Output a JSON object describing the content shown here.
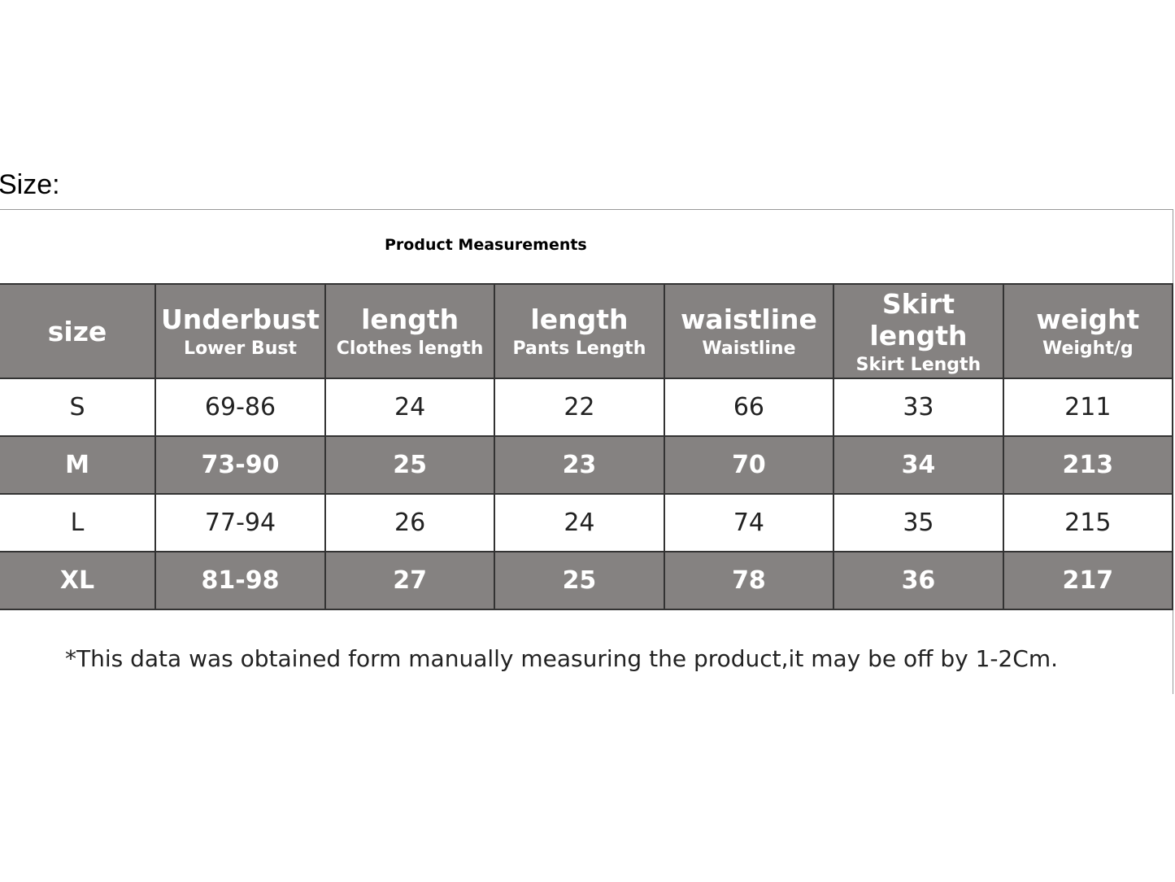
{
  "heading": "Size:",
  "table": {
    "title": "Product Measurements",
    "columns": [
      {
        "main": "size",
        "sub": null
      },
      {
        "main": "Underbust",
        "sub": "Lower Bust"
      },
      {
        "main": "length",
        "sub": "Clothes length"
      },
      {
        "main": "length",
        "sub": "Pants Length"
      },
      {
        "main": "waistline",
        "sub": "Waistline"
      },
      {
        "main": "Skirt length",
        "sub": "Skirt Length"
      },
      {
        "main": "weight",
        "sub": "Weight/g"
      }
    ],
    "rows": [
      [
        "S",
        "69-86",
        "24",
        "22",
        "66",
        "33",
        "211"
      ],
      [
        "M",
        "73-90",
        "25",
        "23",
        "70",
        "34",
        "213"
      ],
      [
        "L",
        "77-94",
        "26",
        "24",
        "74",
        "35",
        "215"
      ],
      [
        "XL",
        "81-98",
        "27",
        "25",
        "78",
        "36",
        "217"
      ]
    ],
    "note": "*This data was obtained form manually measuring the product,it may be off by 1-2Cm."
  }
}
